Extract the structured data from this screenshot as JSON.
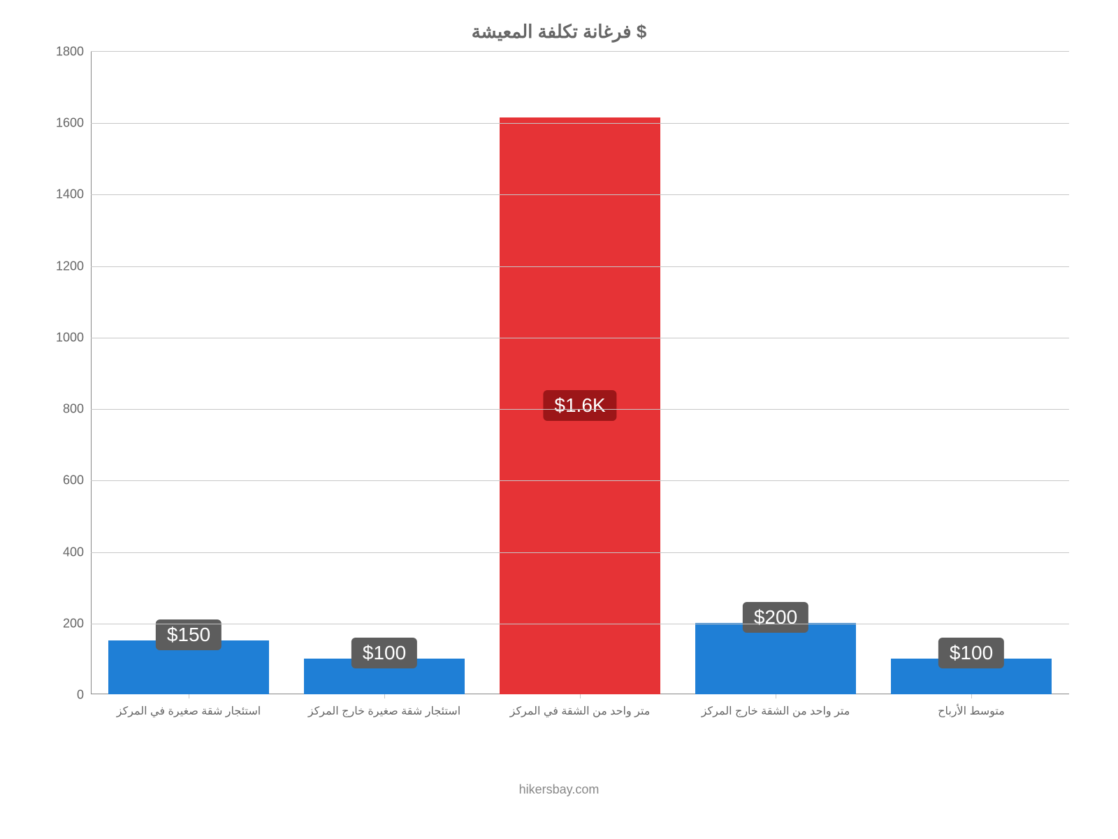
{
  "chart": {
    "type": "bar",
    "title": "فرغانة تكلفة المعيشة $",
    "title_fontsize": 26,
    "title_color": "#666666",
    "background_color": "#ffffff",
    "grid_color": "#c7c7c7",
    "axis_color": "#888888",
    "label_color": "#666666",
    "x_label_fontsize": 16,
    "y_label_fontsize": 18,
    "bar_label_fontsize": 28,
    "bar_width_pct": 82,
    "ylim": [
      0,
      1800
    ],
    "yticks": [
      0,
      200,
      400,
      600,
      800,
      1000,
      1200,
      1400,
      1600,
      1800
    ],
    "categories": [
      "استئجار شقة صغيرة في المركز",
      "استئجار شقة صغيرة خارج المركز",
      "متر واحد من الشقة في المركز",
      "متر واحد من الشقة خارج المركز",
      "متوسط الأرباح"
    ],
    "values": [
      150,
      100,
      1615,
      200,
      100
    ],
    "display_labels": [
      "$150",
      "$100",
      "$1.6K",
      "$200",
      "$100"
    ],
    "bar_colors": [
      "#1f7fd6",
      "#1f7fd6",
      "#e63336",
      "#1f7fd6",
      "#1f7fd6"
    ],
    "bar_label_bg": [
      "#5d5d5d",
      "#5d5d5d",
      "#9c1618",
      "#5d5d5d",
      "#5d5d5d"
    ],
    "bar_label_position": [
      "top",
      "top",
      "mid",
      "top",
      "top"
    ]
  },
  "attribution": "hikersbay.com"
}
